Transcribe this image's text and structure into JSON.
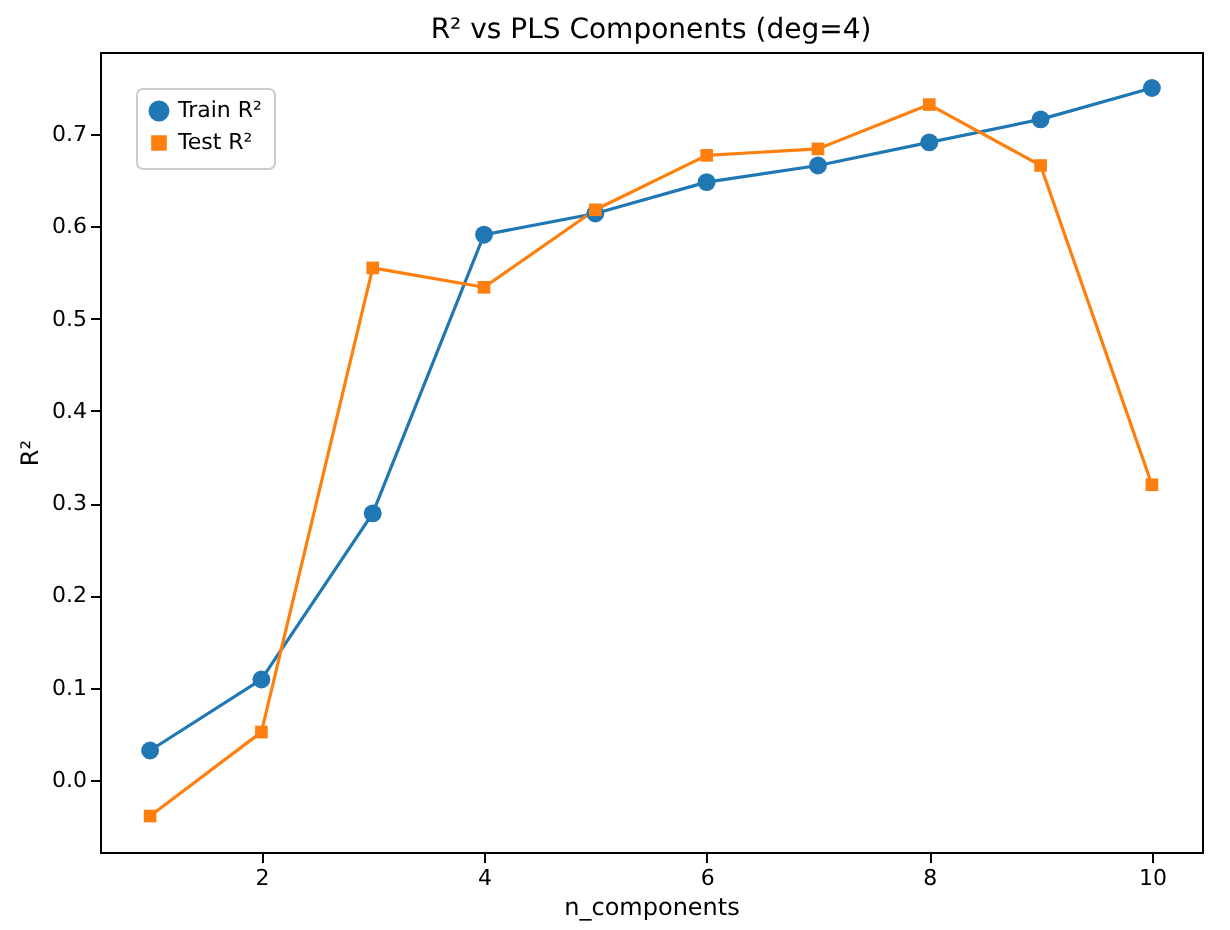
{
  "chart_data": {
    "type": "line",
    "title": "R² vs PLS Components (deg=4)",
    "xlabel": "n_components",
    "ylabel": "R²",
    "x": [
      1,
      2,
      3,
      4,
      5,
      6,
      7,
      8,
      9,
      10
    ],
    "series": [
      {
        "name": "Train R²",
        "color": "#1f77b4",
        "marker": "circle",
        "values": [
          0.032,
          0.109,
          0.289,
          0.591,
          0.614,
          0.648,
          0.666,
          0.691,
          0.716,
          0.75
        ]
      },
      {
        "name": "Test R²",
        "color": "#ff7f0e",
        "marker": "square",
        "values": [
          -0.039,
          0.052,
          0.555,
          0.534,
          0.618,
          0.677,
          0.684,
          0.732,
          0.666,
          0.32
        ]
      }
    ],
    "xlim": [
      0.55,
      10.45
    ],
    "ylim": [
      -0.078,
      0.789
    ],
    "xticks": [
      2,
      4,
      6,
      8,
      10
    ],
    "yticks": [
      {
        "value": 0,
        "label": "0.0"
      },
      {
        "value": 0.1,
        "label": "0.1"
      },
      {
        "value": 0.2,
        "label": "0.2"
      },
      {
        "value": 0.3,
        "label": "0.3"
      },
      {
        "value": 0.4,
        "label": "0.4"
      },
      {
        "value": 0.5,
        "label": "0.5"
      },
      {
        "value": 0.6,
        "label": "0.6"
      },
      {
        "value": 0.7,
        "label": "0.7"
      }
    ],
    "grid": false,
    "legend": "top left",
    "line_style": "solid"
  }
}
